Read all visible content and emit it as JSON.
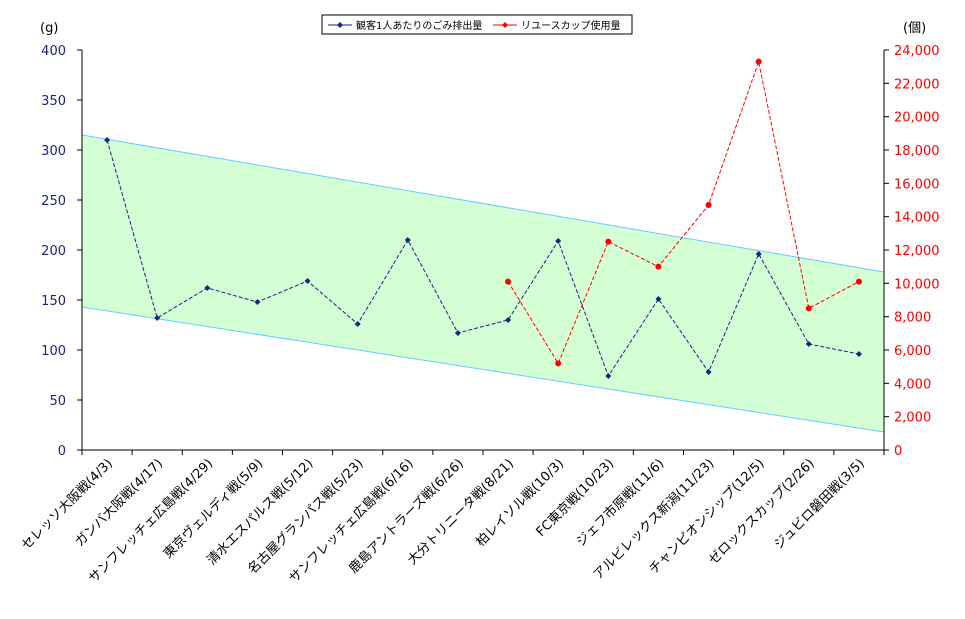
{
  "chart_data": {
    "type": "line",
    "y_left_unit": "(g)",
    "y_right_unit": "(個)",
    "ylim_left": [
      0,
      400
    ],
    "ylim_right": [
      0,
      24000
    ],
    "y_left_ticks": [
      "0",
      "50",
      "100",
      "150",
      "200",
      "250",
      "300",
      "350",
      "400"
    ],
    "y_right_ticks": [
      "0",
      "2,000",
      "4,000",
      "6,000",
      "8,000",
      "10,000",
      "12,000",
      "14,000",
      "16,000",
      "18,000",
      "20,000",
      "22,000",
      "24,000"
    ],
    "categories": [
      "セレッソ大阪戦(4/3)",
      "ガンバ大阪戦(4/17)",
      "サンフレッチェ広島戦(4/29)",
      "東京ヴェルディ戦(5/9)",
      "清水エスパルス戦(5/12)",
      "名古屋グランパス戦(5/23)",
      "サンフレッチェ広島戦(6/16)",
      "鹿島アントラーズ戦(6/26)",
      "大分トリニータ戦(8/21)",
      "柏レイソル戦(10/3)",
      "FC東京戦(10/23)",
      "ジェフ市原戦(11/6)",
      "アルビレックス新潟(11/23)",
      "チャンピオンシップ(12/5)",
      "ゼロックスカップ(2/26)",
      "ジュビロ磐田戦(3/5)"
    ],
    "series": [
      {
        "name": "観客1人あたりのごみ排出量",
        "axis": "left",
        "color": "#1a237e",
        "values": [
          310,
          132,
          162,
          148,
          169,
          126,
          210,
          117,
          130,
          209,
          74,
          151,
          78,
          196,
          106,
          96
        ]
      },
      {
        "name": "リユースカップ使用量",
        "axis": "right",
        "color": "#ff0000",
        "values": [
          null,
          null,
          null,
          null,
          null,
          null,
          null,
          null,
          10100,
          5200,
          12500,
          11000,
          14700,
          23300,
          8500,
          10100
        ]
      }
    ],
    "band": {
      "fill": "#ccffcc",
      "stroke": "#66ccff",
      "upper": [
        315,
        178
      ],
      "lower": [
        143,
        18
      ]
    },
    "legend_position": "top-center",
    "grid": false
  }
}
